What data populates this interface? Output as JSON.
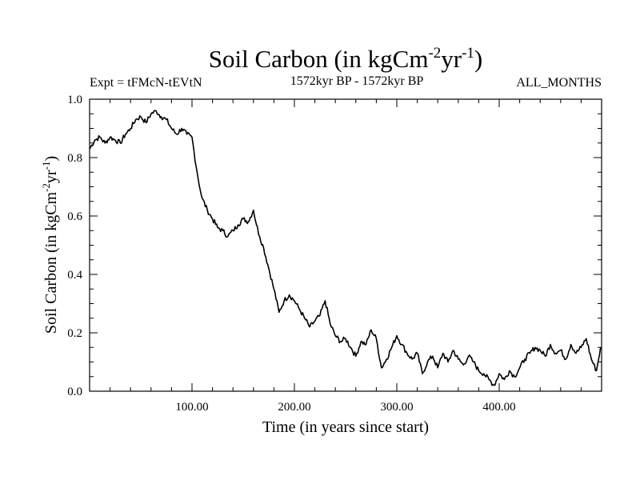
{
  "chart_data": {
    "type": "line",
    "title": "Soil Carbon (in kgCm",
    "title_exp1": "-2",
    "title_mid": "yr",
    "title_exp2": "-1",
    "title_end": ")",
    "subtitle_left": "Expt = tFMcN-tEVtN",
    "subtitle_center": "1572kyr BP - 1572kyr BP",
    "subtitle_right": "ALL_MONTHS",
    "xlabel": "Time (in years since start)",
    "ylabel": "Soil Carbon (in kgCm",
    "ylabel_exp1": "-2",
    "ylabel_mid": "yr",
    "ylabel_exp2": "-1",
    "ylabel_end": ")",
    "xlim": [
      0,
      500
    ],
    "ylim": [
      0.0,
      1.0
    ],
    "x_ticks": [
      100,
      200,
      300,
      400
    ],
    "x_tick_labels": [
      "100.00",
      "200.00",
      "300.00",
      "400.00"
    ],
    "y_ticks": [
      0.0,
      0.2,
      0.4,
      0.6,
      0.8,
      1.0
    ],
    "y_tick_labels": [
      "0.0",
      "0.2",
      "0.4",
      "0.6",
      "0.8",
      "1.0"
    ],
    "series": [
      {
        "name": "Soil Carbon",
        "color": "#000000",
        "x": [
          0,
          5,
          10,
          15,
          20,
          25,
          30,
          35,
          40,
          45,
          50,
          55,
          60,
          65,
          70,
          75,
          80,
          85,
          90,
          95,
          100,
          102,
          105,
          108,
          110,
          115,
          120,
          125,
          130,
          135,
          140,
          145,
          150,
          155,
          160,
          163,
          166,
          170,
          175,
          180,
          185,
          190,
          195,
          200,
          205,
          210,
          215,
          220,
          225,
          230,
          235,
          240,
          245,
          250,
          255,
          260,
          265,
          270,
          275,
          280,
          285,
          290,
          295,
          300,
          305,
          310,
          315,
          320,
          325,
          330,
          335,
          340,
          345,
          350,
          355,
          360,
          365,
          370,
          375,
          380,
          385,
          390,
          395,
          400,
          405,
          410,
          415,
          420,
          425,
          430,
          435,
          440,
          445,
          450,
          455,
          460,
          465,
          470,
          475,
          480,
          485,
          490,
          495,
          499
        ],
        "y": [
          0.83,
          0.86,
          0.87,
          0.85,
          0.87,
          0.86,
          0.85,
          0.88,
          0.9,
          0.93,
          0.94,
          0.92,
          0.95,
          0.96,
          0.94,
          0.93,
          0.9,
          0.88,
          0.9,
          0.88,
          0.87,
          0.82,
          0.75,
          0.69,
          0.66,
          0.62,
          0.59,
          0.56,
          0.55,
          0.53,
          0.55,
          0.57,
          0.59,
          0.58,
          0.62,
          0.57,
          0.53,
          0.49,
          0.42,
          0.35,
          0.27,
          0.31,
          0.33,
          0.31,
          0.28,
          0.25,
          0.22,
          0.24,
          0.26,
          0.31,
          0.23,
          0.19,
          0.17,
          0.18,
          0.15,
          0.12,
          0.17,
          0.16,
          0.21,
          0.18,
          0.08,
          0.11,
          0.15,
          0.19,
          0.16,
          0.13,
          0.11,
          0.13,
          0.06,
          0.1,
          0.12,
          0.08,
          0.13,
          0.1,
          0.14,
          0.11,
          0.09,
          0.12,
          0.1,
          0.07,
          0.06,
          0.04,
          0.02,
          0.06,
          0.04,
          0.07,
          0.05,
          0.08,
          0.11,
          0.13,
          0.15,
          0.14,
          0.12,
          0.16,
          0.13,
          0.14,
          0.11,
          0.16,
          0.13,
          0.15,
          0.18,
          0.11,
          0.07,
          0.15
        ]
      }
    ]
  }
}
